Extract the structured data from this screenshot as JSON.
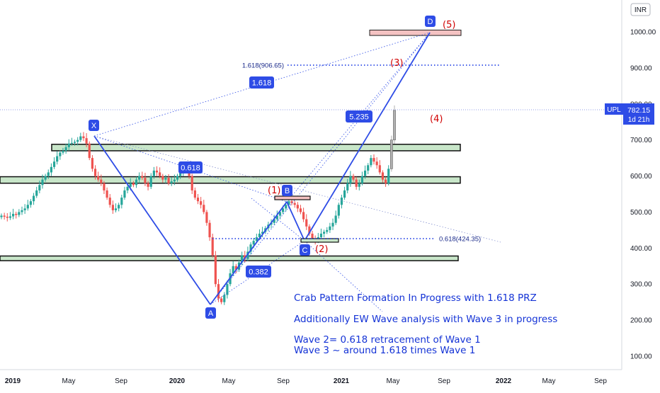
{
  "currency": "INR",
  "symbol": "UPL",
  "last_price": "782.15",
  "time_left": "1d 21h",
  "colors": {
    "up": "#26a69a",
    "down": "#ef5350",
    "pattern": "#2e4ce6",
    "fib": "#2e4ce6",
    "ew": "#d00000",
    "note": "#1433d6",
    "zone_green": "#c8e6c9",
    "zone_red": "#f4c2c2"
  },
  "chart_data": {
    "type": "candlestick",
    "ylim": [
      40,
      1050
    ],
    "y_ticks": [
      "1000.00",
      "900.00",
      "800.00",
      "700.00",
      "600.00",
      "500.00",
      "400.00",
      "300.00",
      "200.00",
      "100.00"
    ],
    "x_ticks": [
      {
        "label": "2019",
        "bold": true
      },
      {
        "label": "May",
        "bold": false
      },
      {
        "label": "Sep",
        "bold": false
      },
      {
        "label": "2020",
        "bold": true
      },
      {
        "label": "May",
        "bold": false
      },
      {
        "label": "Sep",
        "bold": false
      },
      {
        "label": "2021",
        "bold": true
      },
      {
        "label": "May",
        "bold": false
      },
      {
        "label": "Sep",
        "bold": false
      },
      {
        "label": "2022",
        "bold": true
      },
      {
        "label": "May",
        "bold": false
      },
      {
        "label": "Sep",
        "bold": false
      }
    ],
    "pattern_points": [
      {
        "name": "X",
        "date": "2019-07",
        "price": 712
      },
      {
        "name": "A",
        "date": "2020-03",
        "price": 240
      },
      {
        "name": "B",
        "date": "2020-09",
        "price": 535
      },
      {
        "name": "C",
        "date": "2020-11",
        "price": 420
      },
      {
        "name": "D",
        "date": "2021-07",
        "price": 990
      }
    ],
    "pattern_ratios": [
      "0.618",
      "0.382",
      "1.618",
      "5.235"
    ],
    "fib_levels": [
      {
        "label": "1.618(906.65)",
        "price": 906.65
      },
      {
        "label": "0.618(424.35)",
        "price": 424.35
      }
    ],
    "ew_labels": [
      "(1)",
      "(2)",
      "(3)",
      "(4)",
      "(5)"
    ],
    "zones": [
      {
        "type": "green",
        "low": 670,
        "high": 688
      },
      {
        "type": "green",
        "low": 580,
        "high": 598
      },
      {
        "type": "green",
        "low": 365,
        "high": 378
      },
      {
        "type": "red",
        "low": 990,
        "high": 1005
      }
    ],
    "notes": [
      "Crab Pattern Formation In Progress with 1.618 PRZ",
      "Additionally EW Wave analysis with Wave 3 in progress",
      "Wave 2= 0.618 retracement of Wave 1",
      "Wave 3 ~ around 1.618 times Wave 1"
    ],
    "weekly_close": [
      490,
      487,
      484,
      488,
      495,
      492,
      500,
      505,
      510,
      520,
      530,
      545,
      560,
      575,
      590,
      600,
      610,
      625,
      640,
      655,
      665,
      670,
      680,
      690,
      692,
      695,
      700,
      710,
      705,
      690,
      650,
      620,
      600,
      590,
      580,
      560,
      540,
      520,
      505,
      510,
      520,
      540,
      560,
      570,
      580,
      575,
      590,
      600,
      595,
      580,
      570,
      600,
      615,
      610,
      600,
      590,
      595,
      580,
      585,
      590,
      600,
      610,
      615,
      620,
      600,
      560,
      540,
      530,
      520,
      500,
      470,
      430,
      380,
      300,
      260,
      250,
      270,
      300,
      330,
      350,
      340,
      360,
      380,
      370,
      390,
      410,
      420,
      430,
      440,
      445,
      455,
      465,
      470,
      480,
      490,
      500,
      510,
      520,
      530,
      525,
      520,
      510,
      500,
      480,
      460,
      440,
      425,
      420,
      430,
      440,
      445,
      450,
      460,
      470,
      490,
      520,
      540,
      560,
      580,
      600,
      590,
      570,
      580,
      600,
      615,
      630,
      650,
      640,
      630,
      610,
      590,
      580,
      620,
      700,
      782
    ]
  }
}
